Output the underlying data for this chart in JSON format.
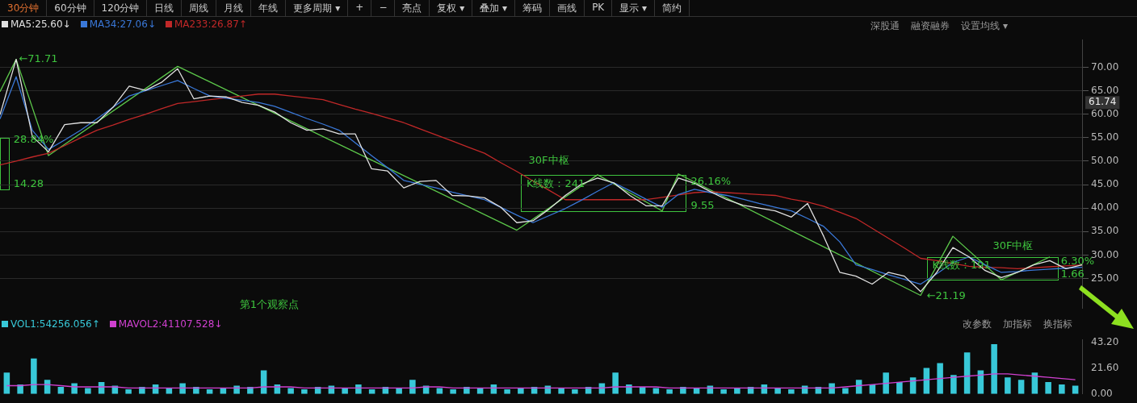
{
  "chart_data": [
    {
      "type": "other",
      "annotations": [
        "30分钟",
        "60分钟",
        "120分钟",
        "日线",
        "周线",
        "月线",
        "年线",
        "更多周期 ▾",
        "+",
        "−",
        "亮点",
        "复权 ▾",
        "叠加 ▾",
        "筹码",
        "画线",
        "PK",
        "显示 ▾",
        "简约",
        "深股通",
        "融资融券",
        "设置均线 ▾"
      ]
    },
    {
      "type": "line",
      "categories": [
        null,
        null,
        null,
        null,
        null,
        null,
        null,
        null,
        null,
        null,
        null,
        null,
        null,
        null,
        null,
        null,
        null,
        null,
        null,
        null,
        null,
        null,
        null,
        null,
        null,
        null,
        null,
        null,
        null,
        null,
        null,
        null,
        null,
        null,
        null,
        null,
        null,
        null,
        null,
        null,
        null,
        null,
        null,
        null,
        null,
        null,
        null,
        null,
        null,
        null,
        null,
        null,
        null,
        null,
        null,
        null,
        null,
        null,
        null,
        null,
        null,
        null,
        null,
        null,
        null,
        null,
        null,
        null
      ],
      "ylim": [
        18.6,
        75.9
      ],
      "yticks": [
        {
          "value": 25,
          "label": "25.00"
        },
        {
          "value": 30,
          "label": "30.00"
        },
        {
          "value": 35,
          "label": "35.00"
        },
        {
          "value": 40,
          "label": "40.00"
        },
        {
          "value": 45,
          "label": "45.00"
        },
        {
          "value": 50,
          "label": "50.00"
        },
        {
          "value": 55,
          "label": "55.00"
        },
        {
          "value": 60,
          "label": "60.00"
        },
        {
          "value": 65,
          "label": "65.00"
        },
        {
          "value": 70,
          "label": "70.00"
        }
      ],
      "tick_labels": "y",
      "grid": "y",
      "legend": "top left",
      "marker": "none",
      "series": [
        {
          "name": "MA5:25.60↓",
          "color": "#e0e0e0",
          "values": [
            59.9,
            71.7,
            55.3,
            52,
            57.8,
            58.2,
            58.2,
            61.5,
            66,
            65.1,
            66.8,
            69.7,
            63.3,
            63.9,
            63.7,
            62.5,
            61.9,
            60.5,
            58.2,
            56.6,
            56.9,
            55.8,
            55.8,
            48.4,
            47.9,
            44.3,
            45.7,
            45.9,
            42.7,
            42.6,
            42.2,
            40.2,
            36.9,
            37.3,
            39.8,
            42.7,
            45.1,
            46.4,
            45.4,
            42.7,
            40.5,
            40.5,
            46.4,
            45.3,
            43.5,
            41.8,
            40.6,
            40,
            39.4,
            38.1,
            41,
            34,
            26.3,
            25.5,
            23.8,
            26.3,
            25.5,
            22.2,
            26.3,
            31.6,
            29.6,
            26.7,
            25.2,
            26.3,
            27.9,
            28.8,
            27.1,
            27.9
          ]
        },
        {
          "name": "MA34:27.06↓",
          "color": "#3a78d8",
          "values": [
            59,
            68,
            56.6,
            52.5,
            54.5,
            56.6,
            59,
            61.5,
            63.9,
            65,
            66.1,
            67.2,
            65.5,
            63.9,
            63.4,
            63,
            62.5,
            61.7,
            60.4,
            59.1,
            57.9,
            56.6,
            53.9,
            51.2,
            48.6,
            45.9,
            45.1,
            44.3,
            43.4,
            42.6,
            41.8,
            40.2,
            38.5,
            36.9,
            38.4,
            39.9,
            41.7,
            43.6,
            45.4,
            43.7,
            41.9,
            40.2,
            42.9,
            44,
            43.3,
            42.7,
            41.9,
            41,
            40.2,
            39.4,
            37.8,
            36.1,
            32.8,
            27.9,
            26.9,
            25.8,
            24.8,
            23.8,
            26,
            28.4,
            29.6,
            27.9,
            26.3,
            26.5,
            26.8,
            27,
            27.2,
            27.4
          ]
        },
        {
          "name": "MA233:26.87↑",
          "color": "#c02828",
          "values": [
            49.2,
            50,
            50.9,
            51.7,
            53.3,
            55,
            56.6,
            57.7,
            58.9,
            60,
            61.2,
            62.3,
            62.7,
            63.1,
            63.5,
            63.9,
            64.3,
            64.3,
            63.9,
            63.5,
            63.1,
            62.1,
            61.1,
            60.2,
            59.2,
            58.2,
            56.9,
            55.6,
            54.3,
            53,
            51.7,
            49.7,
            47.8,
            45.8,
            43.8,
            41.8,
            41.8,
            41.8,
            41.8,
            41.8,
            41.8,
            42.3,
            42.8,
            43.3,
            43.5,
            43.3,
            43.1,
            42.9,
            42.7,
            41.9,
            41.3,
            40.4,
            39.1,
            37.8,
            35.7,
            33.6,
            31.5,
            29.3,
            28.8,
            28.2,
            27.6,
            27.4,
            27.3,
            27.1,
            27.3,
            27.5,
            27.7,
            27.9
          ]
        },
        {
          "color": "#5cc84a",
          "values": [
            64.8,
            71.7,
            null,
            51.2,
            null,
            null,
            null,
            null,
            null,
            null,
            null,
            70.2,
            null,
            null,
            null,
            null,
            null,
            null,
            null,
            null,
            null,
            null,
            null,
            null,
            null,
            null,
            null,
            null,
            null,
            null,
            null,
            null,
            35.3,
            null,
            null,
            null,
            null,
            47.1,
            null,
            null,
            null,
            39.4,
            47.3,
            null,
            null,
            null,
            null,
            null,
            null,
            null,
            null,
            null,
            null,
            null,
            null,
            null,
            null,
            21.4,
            null,
            34,
            null,
            null,
            24.7,
            null,
            null,
            29.6,
            null,
            null
          ]
        }
      ],
      "annotations": [
        "←71.71",
        "28.84%",
        "14.28",
        "30F中枢",
        "K线数：241",
        "26.16%",
        "9.55",
        "←21.19",
        "30F中枢",
        "K线数：191",
        "6.30%",
        "1.66",
        "第1个观察点",
        "61.74"
      ]
    },
    {
      "type": "bar",
      "categories": [
        null,
        null,
        null,
        null,
        null,
        null,
        null,
        null,
        null,
        null,
        null,
        null,
        null,
        null,
        null,
        null,
        null,
        null,
        null,
        null,
        null,
        null,
        null,
        null,
        null,
        null,
        null,
        null,
        null,
        null,
        null,
        null,
        null,
        null,
        null,
        null,
        null,
        null,
        null,
        null,
        null,
        null,
        null,
        null,
        null,
        null,
        null,
        null,
        null,
        null,
        null,
        null,
        null,
        null,
        null,
        null,
        null,
        null,
        null,
        null,
        null,
        null,
        null,
        null,
        null,
        null,
        null,
        null,
        null,
        null,
        null,
        null,
        null,
        null,
        null,
        null,
        null,
        null,
        null,
        null
      ],
      "ylim": [
        0,
        46
      ],
      "yticks": [
        {
          "value": 0,
          "label": "0.00"
        },
        {
          "value": 21.6,
          "label": "21.60"
        },
        {
          "value": 43.2,
          "label": "43.20"
        }
      ],
      "tick_labels": "y",
      "legend": "top left",
      "series": [
        {
          "name": "VOL1:54256.056↑",
          "color": "#38c8d8",
          "values": [
            18,
            8,
            30,
            12,
            6,
            9,
            5,
            10,
            7,
            4,
            6,
            8,
            5,
            9,
            6,
            4,
            5,
            7,
            6,
            20,
            8,
            5,
            4,
            6,
            7,
            5,
            8,
            4,
            6,
            5,
            12,
            7,
            5,
            4,
            6,
            5,
            8,
            4,
            5,
            6,
            7,
            5,
            4,
            6,
            9,
            18,
            8,
            6,
            5,
            4,
            6,
            5,
            7,
            4,
            5,
            6,
            8,
            5,
            4,
            7,
            6,
            9,
            5,
            12,
            8,
            18,
            10,
            14,
            22,
            26,
            16,
            35,
            20,
            42,
            14,
            12,
            18,
            10,
            8,
            7
          ]
        },
        {
          "name": "MAVOL2:41107.528↓",
          "color": "#d040d0",
          "type": "line",
          "values": [
            7,
            7,
            8,
            8,
            7,
            6,
            6,
            6,
            6,
            5,
            5,
            5,
            5,
            5,
            5,
            5,
            5,
            5,
            5,
            6,
            6,
            6,
            5,
            5,
            5,
            5,
            5,
            5,
            5,
            5,
            5,
            6,
            6,
            5,
            5,
            5,
            5,
            5,
            5,
            5,
            5,
            5,
            5,
            5,
            5,
            6,
            6,
            6,
            6,
            5,
            5,
            5,
            5,
            5,
            5,
            5,
            5,
            5,
            5,
            5,
            5,
            5,
            6,
            7,
            8,
            9,
            10,
            11,
            12,
            13,
            14,
            15,
            16,
            17,
            17,
            16,
            15,
            14,
            13,
            12
          ]
        }
      ],
      "annotations": [
        "改参数",
        "加指标",
        "换指标"
      ]
    }
  ]
}
